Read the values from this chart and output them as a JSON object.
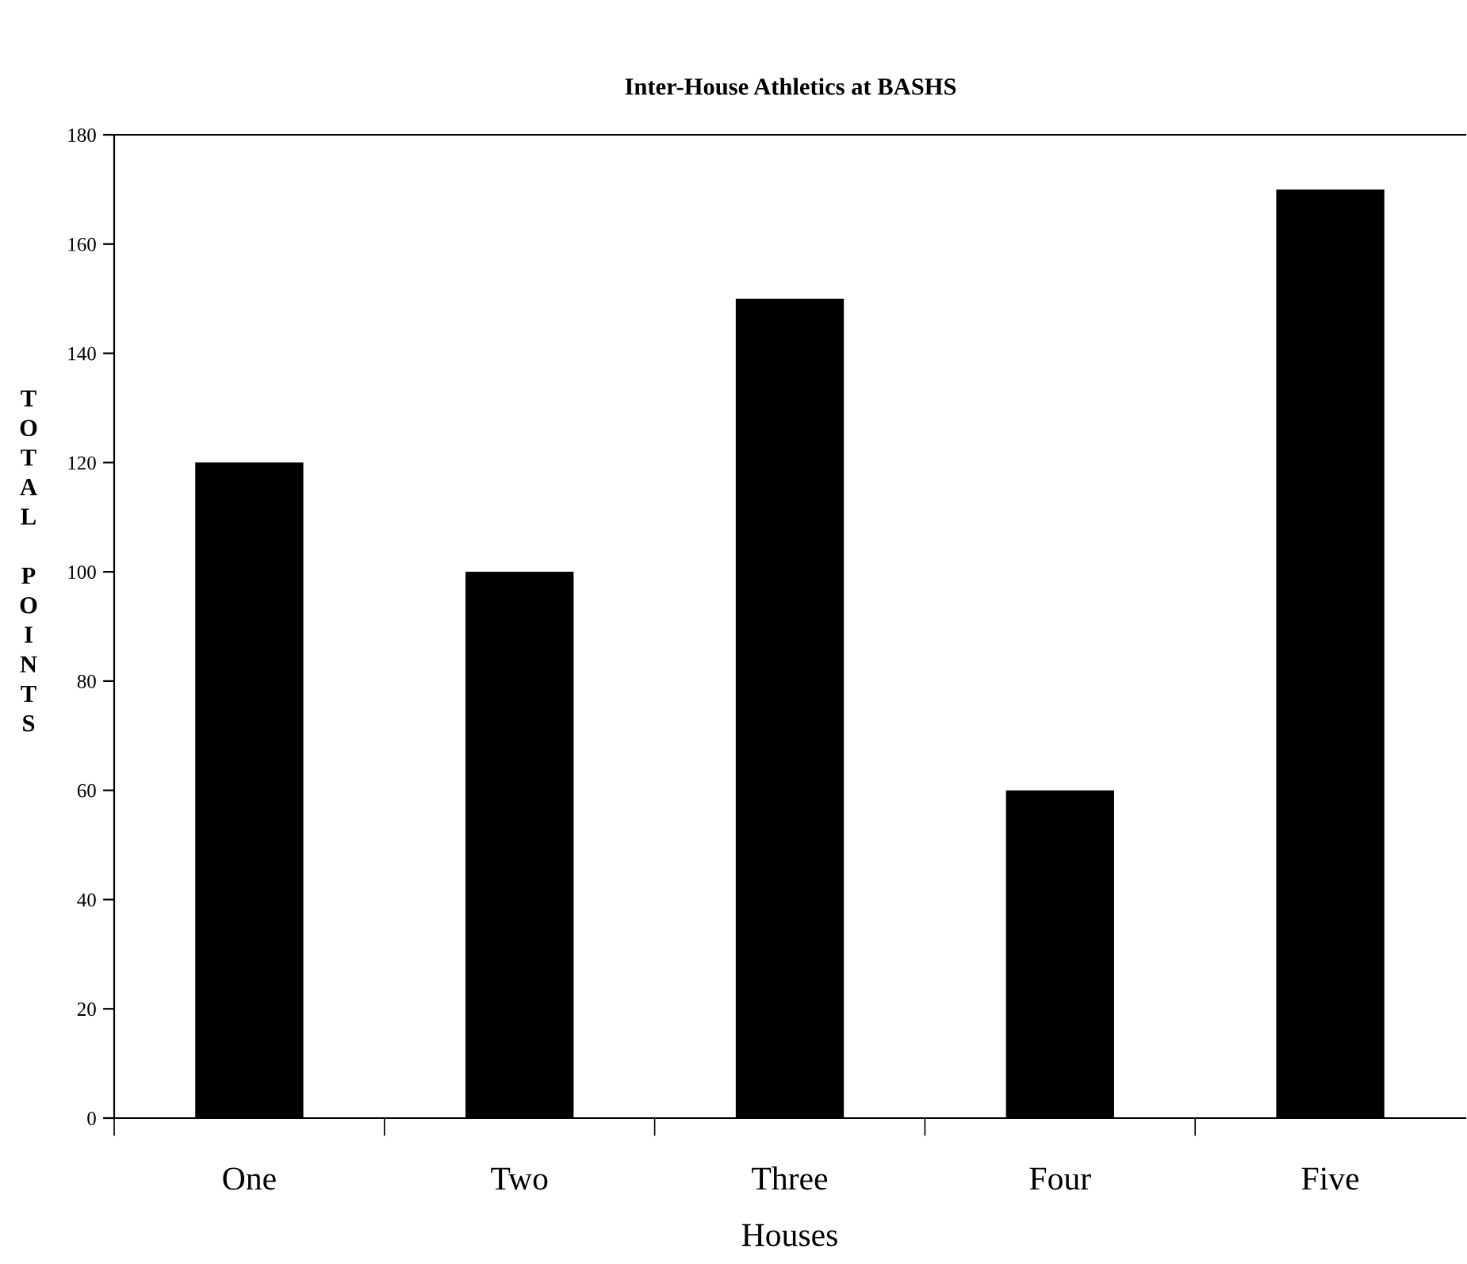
{
  "chart_data": {
    "type": "bar",
    "title": "Inter-House Athletics at BASHS",
    "xlabel": "Houses",
    "ylabel": "TOTAL POINTS",
    "categories": [
      "One",
      "Two",
      "Three",
      "Four",
      "Five"
    ],
    "values": [
      120,
      100,
      150,
      60,
      170
    ],
    "color": "#000000",
    "ylim": [
      0,
      180
    ],
    "yticks": [
      0,
      20,
      40,
      60,
      80,
      100,
      120,
      140,
      160,
      180
    ],
    "grid": false,
    "legend": false
  }
}
